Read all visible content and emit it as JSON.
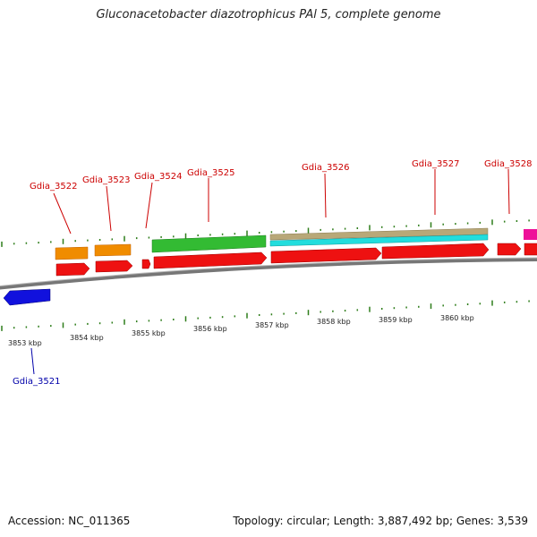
{
  "title": "Gluconacetobacter diazotrophicus PAl 5, complete genome",
  "footer": {
    "accession": "Accession: NC_011365",
    "summary": "Topology: circular; Length: 3,887,492 bp; Genes: 3,539"
  },
  "colors": {
    "forward_label": "#cc0000",
    "reverse_label": "#0000aa",
    "tick": "#2e7d1a",
    "backbone": "#888888"
  },
  "gene_labels_top": [
    "Gdia_3522",
    "Gdia_3523",
    "Gdia_3524",
    "Gdia_3525",
    "Gdia_3526",
    "Gdia_3527",
    "Gdia_3528"
  ],
  "gene_labels_bottom": [
    "Gdia_3521"
  ],
  "kbp_labels": [
    "3853 kbp",
    "3854 kbp",
    "3855 kbp",
    "3856 kbp",
    "3857 kbp",
    "3858 kbp",
    "3859 kbp",
    "3860 kbp"
  ],
  "feature_colors": {
    "orange": "#f08c00",
    "green": "#33bb33",
    "tan": "#b8a878",
    "cyan": "#22dddd",
    "red": "#ee1111",
    "blue": "#1111dd",
    "magenta": "#ee1199"
  }
}
